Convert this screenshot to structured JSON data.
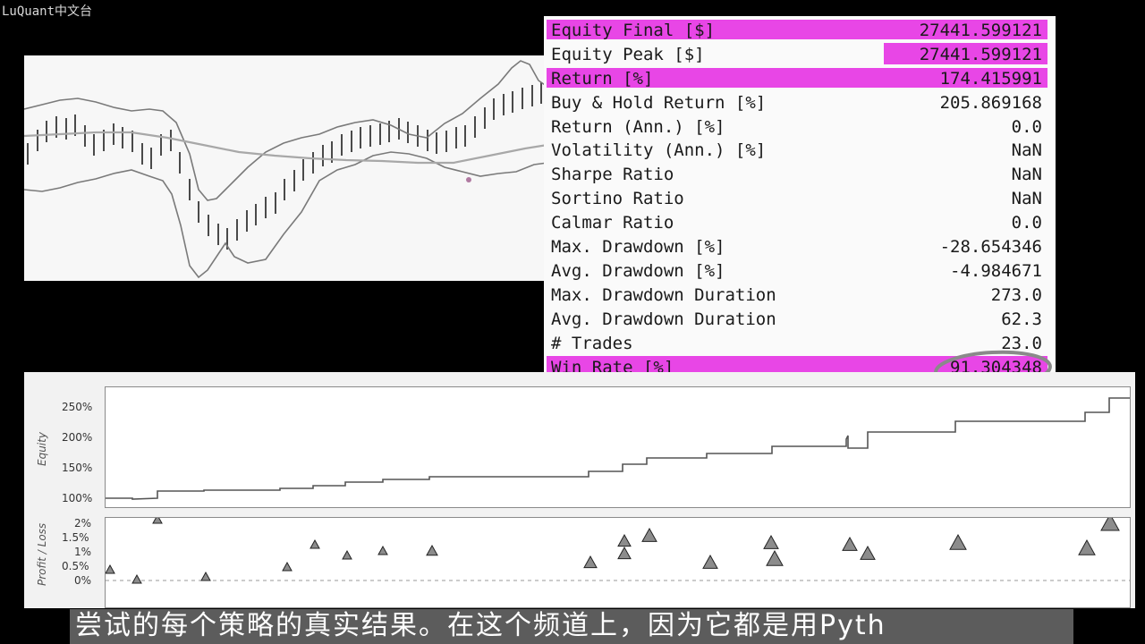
{
  "watermark": "LuQuant中文台",
  "stats": [
    {
      "label": "Equity Final [$]",
      "value": "27441.599121",
      "highlight": true
    },
    {
      "label": "Equity Peak [$]",
      "value": "27441.599121",
      "highlight": "value"
    },
    {
      "label": "Return [%]",
      "value": "174.415991",
      "highlight": true
    },
    {
      "label": "Buy & Hold Return [%]",
      "value": "205.869168",
      "highlight": false
    },
    {
      "label": "Return (Ann.) [%]",
      "value": "0.0",
      "highlight": false
    },
    {
      "label": "Volatility (Ann.) [%]",
      "value": "NaN",
      "highlight": false
    },
    {
      "label": "Sharpe Ratio",
      "value": "NaN",
      "highlight": false
    },
    {
      "label": "Sortino Ratio",
      "value": "NaN",
      "highlight": false
    },
    {
      "label": "Calmar Ratio",
      "value": "0.0",
      "highlight": false
    },
    {
      "label": "Max. Drawdown [%]",
      "value": "-28.654346",
      "highlight": false
    },
    {
      "label": "Avg. Drawdown [%]",
      "value": "-4.984671",
      "highlight": false
    },
    {
      "label": "Max. Drawdown Duration",
      "value": "273.0",
      "highlight": false
    },
    {
      "label": "Avg. Drawdown Duration",
      "value": "62.3",
      "highlight": false
    },
    {
      "label": "# Trades",
      "value": "23.0",
      "highlight": false
    },
    {
      "label": "Win Rate [%]",
      "value": "91.304348",
      "highlight": true
    }
  ],
  "colors": {
    "highlight": "#e846e6",
    "annotation_circle": "#8a8a8a",
    "equity_line": "#555555",
    "subtitle_bg": "#5c5c5c"
  },
  "equity_axis": {
    "title": "Equity",
    "ticks": [
      "250%",
      "200%",
      "150%",
      "100%"
    ]
  },
  "pl_axis": {
    "title": "Profit / Loss",
    "ticks": [
      "2%",
      "1.5%",
      "1%",
      "0.5%",
      "0%"
    ]
  },
  "subtitle": "尝试的每个策略的真实结果。在这个频道上，因为它都是用Pyth"
}
